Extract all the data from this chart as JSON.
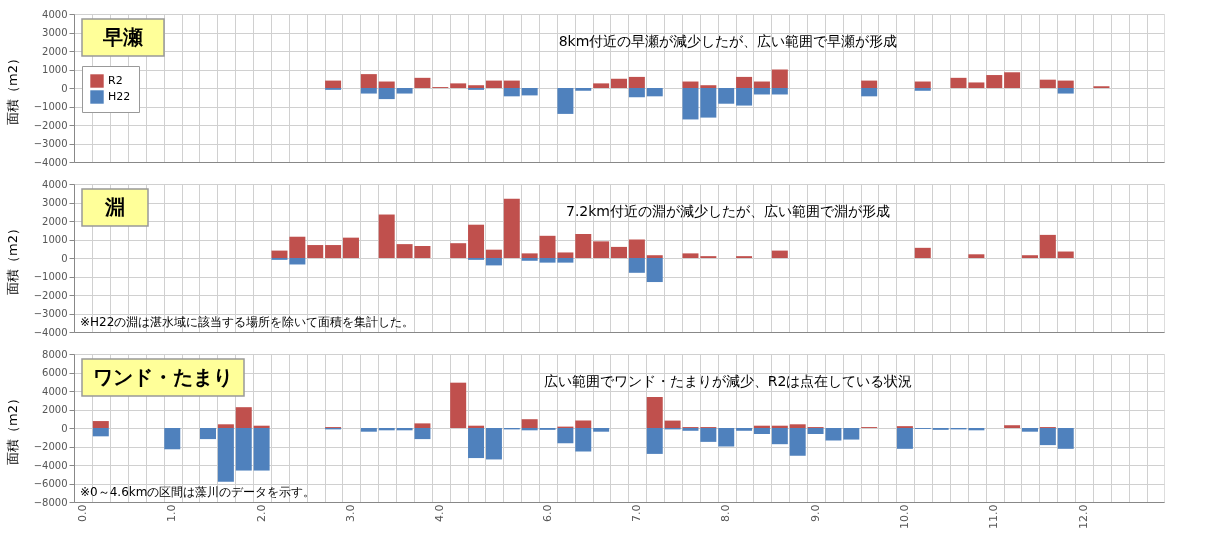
{
  "chart_data": [
    {
      "type": "bar",
      "title": "早瀬",
      "ylabel": "面積（m2）",
      "tick_labels": "y",
      "grid": true,
      "legend": "left",
      "annotations": [
        "8km付近の早瀬が減少したが、広い範囲で早瀬が形成"
      ],
      "categories": [
        "0.0",
        null,
        null,
        null,
        null,
        "1.0",
        null,
        null,
        null,
        null,
        "2.0",
        null,
        null,
        null,
        null,
        "3.0",
        null,
        null,
        null,
        null,
        "4.0",
        null,
        null,
        null,
        null,
        null,
        "6.0",
        null,
        null,
        null,
        null,
        "7.0",
        null,
        null,
        null,
        null,
        "8.0",
        null,
        null,
        null,
        null,
        "9.0",
        null,
        null,
        null,
        null,
        "10.0",
        null,
        null,
        null,
        null,
        "11.0",
        null,
        null,
        null,
        null,
        "12.0",
        null,
        null,
        null,
        null
      ],
      "ylim": [
        -4000,
        4000
      ],
      "yticks": [
        -4000,
        -3000,
        -2000,
        -1000,
        0,
        1000,
        2000,
        3000,
        4000
      ],
      "series": [
        {
          "name": "R2",
          "color": "#c0504d",
          "values": [
            null,
            null,
            null,
            null,
            null,
            null,
            null,
            null,
            null,
            null,
            null,
            null,
            null,
            null,
            400,
            null,
            750,
            350,
            null,
            550,
            50,
            250,
            150,
            400,
            400,
            null,
            null,
            null,
            null,
            250,
            500,
            600,
            null,
            null,
            350,
            150,
            null,
            600,
            350,
            1000,
            null,
            null,
            null,
            null,
            400,
            null,
            null,
            350,
            null,
            550,
            300,
            700,
            850,
            null,
            450,
            400,
            null,
            100,
            null,
            null,
            null
          ]
        },
        {
          "name": "H22",
          "color": "#4f81bd",
          "values": [
            null,
            null,
            null,
            null,
            null,
            null,
            null,
            null,
            null,
            null,
            null,
            null,
            null,
            null,
            -100,
            null,
            -300,
            -600,
            -300,
            null,
            null,
            null,
            -100,
            null,
            -450,
            -400,
            null,
            -1400,
            -150,
            null,
            null,
            -500,
            -450,
            null,
            -1700,
            -1600,
            -850,
            -950,
            -350,
            -350,
            null,
            null,
            null,
            null,
            -450,
            null,
            null,
            -150,
            null,
            null,
            null,
            null,
            null,
            null,
            null,
            -300,
            null,
            null,
            null,
            null,
            null
          ]
        }
      ]
    },
    {
      "type": "bar",
      "title": "淵",
      "ylabel": "面積（m2）",
      "tick_labels": "y",
      "grid": true,
      "legend": "left",
      "annotations": [
        "7.2km付近の淵が減少したが、広い範囲で淵が形成",
        "※H22の淵は湛水域に該当する場所を除いて面積を集計した。"
      ],
      "categories": [
        "0.0",
        null,
        null,
        null,
        null,
        "1.0",
        null,
        null,
        null,
        null,
        "2.0",
        null,
        null,
        null,
        null,
        "3.0",
        null,
        null,
        null,
        null,
        "4.0",
        null,
        null,
        null,
        null,
        null,
        "6.0",
        null,
        null,
        null,
        null,
        "7.0",
        null,
        null,
        null,
        null,
        "8.0",
        null,
        null,
        null,
        null,
        "9.0",
        null,
        null,
        null,
        null,
        "10.0",
        null,
        null,
        null,
        null,
        "11.0",
        null,
        null,
        null,
        null,
        "12.0",
        null,
        null,
        null,
        null
      ],
      "ylim": [
        -4000,
        4000
      ],
      "yticks": [
        -4000,
        -3000,
        -2000,
        -1000,
        0,
        1000,
        2000,
        3000,
        4000
      ],
      "series": [
        {
          "name": "R2",
          "color": "#c0504d",
          "values": [
            null,
            null,
            null,
            null,
            null,
            null,
            null,
            null,
            null,
            null,
            null,
            400,
            1150,
            700,
            700,
            1100,
            null,
            2350,
            750,
            650,
            null,
            800,
            1800,
            450,
            3200,
            250,
            1200,
            300,
            1300,
            900,
            600,
            1000,
            150,
            null,
            250,
            100,
            null,
            100,
            null,
            400,
            null,
            null,
            null,
            null,
            null,
            null,
            null,
            550,
            null,
            null,
            200,
            null,
            null,
            150,
            1250,
            350,
            null,
            null,
            null,
            null,
            null
          ]
        },
        {
          "name": "H22",
          "color": "#4f81bd",
          "values": [
            null,
            null,
            null,
            null,
            null,
            null,
            null,
            null,
            null,
            null,
            null,
            -100,
            -350,
            null,
            null,
            null,
            null,
            null,
            null,
            null,
            null,
            null,
            -100,
            -400,
            null,
            -150,
            -250,
            -250,
            null,
            null,
            null,
            -800,
            -1300,
            null,
            null,
            null,
            null,
            null,
            null,
            null,
            null,
            null,
            null,
            null,
            null,
            null,
            null,
            null,
            null,
            null,
            null,
            null,
            null,
            null,
            null,
            null,
            null,
            null,
            null,
            null,
            null
          ]
        }
      ]
    },
    {
      "type": "bar",
      "title": "ワンド・たまり",
      "ylabel": "面積（m2）",
      "grid": true,
      "legend": "top left",
      "annotations": [
        "広い範囲でワンド・たまりが減少、R2は点在している状況",
        "※0～4.6kmの区間は藻川のデータを示す。"
      ],
      "categories": [
        "0.0",
        null,
        null,
        null,
        null,
        "1.0",
        null,
        null,
        null,
        null,
        "2.0",
        null,
        null,
        null,
        null,
        "3.0",
        null,
        null,
        null,
        null,
        "4.0",
        null,
        null,
        null,
        null,
        null,
        "6.0",
        null,
        null,
        null,
        null,
        "7.0",
        null,
        null,
        null,
        null,
        "8.0",
        null,
        null,
        null,
        null,
        "9.0",
        null,
        null,
        null,
        null,
        "10.0",
        null,
        null,
        null,
        null,
        "11.0",
        null,
        null,
        null,
        null,
        "12.0",
        null,
        null,
        null,
        null
      ],
      "ylim": [
        -8000,
        8000
      ],
      "yticks": [
        -8000,
        -6000,
        -4000,
        -2000,
        0,
        2000,
        4000,
        6000,
        8000
      ],
      "series": [
        {
          "name": "R2",
          "color": "#c0504d",
          "values": [
            null,
            750,
            null,
            null,
            null,
            null,
            null,
            null,
            400,
            2250,
            250,
            null,
            null,
            null,
            100,
            null,
            null,
            null,
            null,
            500,
            null,
            4900,
            250,
            null,
            null,
            950,
            null,
            150,
            800,
            null,
            null,
            null,
            3350,
            800,
            100,
            100,
            null,
            null,
            250,
            250,
            400,
            100,
            null,
            null,
            100,
            null,
            200,
            null,
            null,
            null,
            null,
            null,
            300,
            null,
            100,
            null,
            null,
            null,
            null,
            null,
            null
          ]
        },
        {
          "name": "H22",
          "color": "#4f81bd",
          "values": [
            null,
            -900,
            null,
            null,
            null,
            -2300,
            null,
            -1200,
            -5800,
            -4600,
            -4600,
            null,
            null,
            null,
            -150,
            null,
            -400,
            -250,
            -250,
            -1200,
            null,
            null,
            -3250,
            -3400,
            -150,
            -250,
            -200,
            -1650,
            -2550,
            -400,
            null,
            null,
            -2800,
            -150,
            -300,
            -1500,
            -2000,
            -300,
            -650,
            -1750,
            -3000,
            -650,
            -1350,
            -1250,
            null,
            null,
            -2250,
            -100,
            -200,
            -150,
            -250,
            null,
            null,
            -400,
            -1850,
            -2250,
            null,
            null,
            null,
            null,
            null
          ]
        }
      ]
    }
  ]
}
